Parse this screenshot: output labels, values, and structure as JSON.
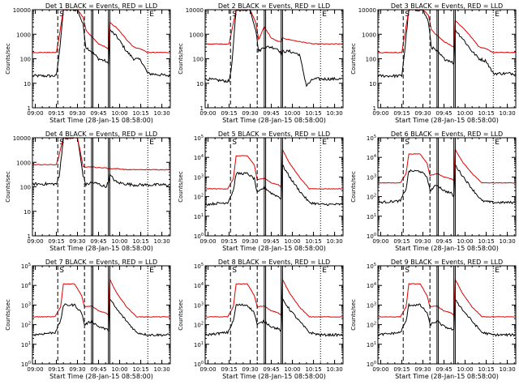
{
  "figure": {
    "xaxis_title": "Start Time (28-Jan-15 08:58:00)",
    "ylabel": "Counts/sec",
    "x_ticks": [
      "09:00",
      "09:15",
      "09:30",
      "09:45",
      "10:00",
      "10:15",
      "10:30"
    ],
    "colors": {
      "events": "#000000",
      "lld": "#dd0000"
    },
    "markers": {
      "dashed_times": [
        "09:16",
        "09:35"
      ],
      "solid_times": [
        "09:40",
        "09:41",
        "09:52",
        "09:53"
      ],
      "dotted_times": [
        "10:20"
      ],
      "letters": [
        "S",
        "E"
      ]
    }
  },
  "chart_data": [
    {
      "title": "Det 1 BLACK = Events, RED = LLD",
      "type": "line",
      "yscale": "log",
      "y_ticks": [
        "1",
        "10",
        "100",
        "1000",
        "10000"
      ],
      "ylim": [
        1,
        10000
      ],
      "x": [
        "08:58",
        "09:15",
        "09:17",
        "09:20",
        "09:30",
        "09:34",
        "09:36",
        "09:40",
        "09:45",
        "09:50",
        "09:52",
        "09:53",
        "09:58",
        "10:05",
        "10:10",
        "10:15",
        "10:20",
        "10:36"
      ],
      "series": [
        {
          "name": "Events",
          "values": [
            20,
            20,
            150,
            10000,
            10000,
            2500,
            300,
            200,
            100,
            80,
            60,
            1500,
            800,
            200,
            100,
            90,
            25,
            20
          ]
        },
        {
          "name": "LLD",
          "values": [
            180,
            180,
            800,
            10000,
            10000,
            5000,
            1500,
            800,
            400,
            300,
            250,
            3000,
            1800,
            600,
            300,
            250,
            180,
            180
          ]
        }
      ]
    },
    {
      "title": "Det 2 BLACK = Events, RED = LLD",
      "type": "line",
      "yscale": "log",
      "y_ticks": [
        "1",
        "10",
        "100",
        "1000",
        "10000"
      ],
      "ylim": [
        1,
        10000
      ],
      "x": [
        "08:58",
        "09:15",
        "09:17",
        "09:20",
        "09:30",
        "09:34",
        "09:36",
        "09:40",
        "09:45",
        "09:50",
        "09:52",
        "09:53",
        "09:58",
        "10:05",
        "10:10",
        "10:15",
        "10:20",
        "10:36"
      ],
      "series": [
        {
          "name": "Events",
          "values": [
            15,
            12,
            60,
            10000,
            10000,
            1500,
            200,
            300,
            300,
            250,
            150,
            200,
            200,
            150,
            8,
            15,
            15,
            15
          ]
        },
        {
          "name": "LLD",
          "values": [
            400,
            400,
            1500,
            10000,
            10000,
            3000,
            600,
            2000,
            700,
            500,
            500,
            700,
            600,
            500,
            450,
            400,
            400,
            400
          ]
        }
      ]
    },
    {
      "title": "Det 3 BLACK = Events, RED = LLD",
      "type": "line",
      "yscale": "log",
      "y_ticks": [
        "1",
        "10",
        "100",
        "1000",
        "10000"
      ],
      "ylim": [
        1,
        10000
      ],
      "x": [
        "08:58",
        "09:15",
        "09:17",
        "09:20",
        "09:30",
        "09:34",
        "09:36",
        "09:40",
        "09:45",
        "09:50",
        "09:52",
        "09:53",
        "09:58",
        "10:05",
        "10:10",
        "10:15",
        "10:20",
        "10:36"
      ],
      "series": [
        {
          "name": "Events",
          "values": [
            20,
            20,
            200,
            10000,
            10000,
            3000,
            300,
            200,
            100,
            80,
            60,
            1500,
            700,
            200,
            100,
            80,
            25,
            25
          ]
        },
        {
          "name": "LLD",
          "values": [
            180,
            180,
            900,
            10000,
            10000,
            6000,
            1500,
            900,
            500,
            350,
            300,
            3500,
            2000,
            700,
            300,
            250,
            180,
            180
          ]
        }
      ]
    },
    {
      "title": "Det 4 BLACK = Events, RED = LLD",
      "type": "line",
      "yscale": "log",
      "y_ticks": [
        "1",
        "10",
        "100",
        "1000",
        "10000"
      ],
      "ylim": [
        1,
        10000
      ],
      "x": [
        "08:58",
        "09:15",
        "09:17",
        "09:20",
        "09:30",
        "09:34",
        "09:36",
        "09:40",
        "09:45",
        "09:50",
        "09:52",
        "09:53",
        "09:58",
        "10:05",
        "10:10",
        "10:15",
        "10:20",
        "10:36"
      ],
      "series": [
        {
          "name": "Events",
          "values": [
            130,
            130,
            250,
            10000,
            10000,
            300,
            120,
            150,
            130,
            100,
            150,
            300,
            150,
            130,
            120,
            120,
            120,
            120
          ]
        },
        {
          "name": "LLD",
          "values": [
            800,
            800,
            2000,
            10000,
            10000,
            700,
            650,
            650,
            600,
            600,
            550,
            550,
            550,
            500,
            500,
            500,
            500,
            500
          ]
        }
      ]
    },
    {
      "title": "Det 5 BLACK = Events, RED = LLD",
      "type": "line",
      "yscale": "log",
      "y_ticks": [
        "10^0",
        "10^1",
        "10^2",
        "10^3",
        "10^4",
        "10^5"
      ],
      "ylim": [
        1,
        100000
      ],
      "x": [
        "08:58",
        "09:14",
        "09:18",
        "09:20",
        "09:28",
        "09:33",
        "09:35",
        "09:40",
        "09:45",
        "09:50",
        "09:52",
        "09:53",
        "09:58",
        "10:05",
        "10:12",
        "10:20",
        "10:36"
      ],
      "series": [
        {
          "name": "Events",
          "values": [
            40,
            50,
            200,
            1500,
            1500,
            800,
            150,
            300,
            150,
            100,
            80,
            4000,
            1000,
            200,
            50,
            40,
            40
          ]
        },
        {
          "name": "LLD",
          "values": [
            250,
            250,
            800,
            12000,
            12000,
            4000,
            700,
            900,
            500,
            400,
            300,
            25000,
            5000,
            1000,
            250,
            250,
            250
          ]
        }
      ]
    },
    {
      "title": "Det 6 BLACK = Events, RED = LLD",
      "type": "line",
      "yscale": "log",
      "y_ticks": [
        "10^0",
        "10^1",
        "10^2",
        "10^3",
        "10^4",
        "10^5"
      ],
      "ylim": [
        1,
        100000
      ],
      "x": [
        "08:58",
        "09:14",
        "09:18",
        "09:20",
        "09:28",
        "09:33",
        "09:35",
        "09:40",
        "09:45",
        "09:50",
        "09:52",
        "09:53",
        "09:58",
        "10:05",
        "10:12",
        "10:20",
        "10:36"
      ],
      "series": [
        {
          "name": "Events",
          "values": [
            50,
            60,
            250,
            2000,
            2000,
            1000,
            200,
            400,
            200,
            150,
            100,
            4000,
            1200,
            250,
            60,
            50,
            50
          ]
        },
        {
          "name": "LLD",
          "values": [
            500,
            500,
            1500,
            15000,
            15000,
            5000,
            1200,
            1500,
            1000,
            800,
            700,
            25000,
            6000,
            1500,
            500,
            500,
            500
          ]
        }
      ]
    },
    {
      "title": "Det 7 BLACK = Events, RED = LLD",
      "type": "line",
      "yscale": "log",
      "y_ticks": [
        "10^0",
        "10^1",
        "10^2",
        "10^3",
        "10^4",
        "10^5"
      ],
      "ylim": [
        1,
        100000
      ],
      "x": [
        "08:58",
        "09:14",
        "09:18",
        "09:20",
        "09:28",
        "09:33",
        "09:35",
        "09:40",
        "09:45",
        "09:50",
        "09:52",
        "09:53",
        "09:58",
        "10:05",
        "10:12",
        "10:20",
        "10:36"
      ],
      "series": [
        {
          "name": "Events",
          "values": [
            30,
            40,
            150,
            1000,
            1000,
            400,
            100,
            150,
            80,
            60,
            50,
            2000,
            600,
            150,
            40,
            30,
            30
          ]
        },
        {
          "name": "LLD",
          "values": [
            250,
            250,
            800,
            12000,
            12000,
            3000,
            800,
            900,
            500,
            400,
            300,
            20000,
            4000,
            800,
            250,
            250,
            250
          ]
        }
      ]
    },
    {
      "title": "Det 8 BLACK = Events, RED = LLD",
      "type": "line",
      "yscale": "log",
      "y_ticks": [
        "10^0",
        "10^1",
        "10^2",
        "10^3",
        "10^4",
        "10^5"
      ],
      "ylim": [
        1,
        100000
      ],
      "x": [
        "08:58",
        "09:14",
        "09:18",
        "09:20",
        "09:28",
        "09:33",
        "09:35",
        "09:40",
        "09:45",
        "09:50",
        "09:52",
        "09:53",
        "09:58",
        "10:05",
        "10:12",
        "10:20",
        "10:36"
      ],
      "series": [
        {
          "name": "Events",
          "values": [
            30,
            40,
            150,
            1000,
            1000,
            400,
            100,
            150,
            80,
            60,
            50,
            2000,
            600,
            150,
            40,
            30,
            30
          ]
        },
        {
          "name": "LLD",
          "values": [
            250,
            250,
            800,
            12000,
            12000,
            3000,
            800,
            900,
            500,
            400,
            300,
            20000,
            4000,
            800,
            250,
            250,
            250
          ]
        }
      ]
    },
    {
      "title": "Det 9 BLACK = Events, RED = LLD",
      "type": "line",
      "yscale": "log",
      "y_ticks": [
        "10^0",
        "10^1",
        "10^2",
        "10^3",
        "10^4",
        "10^5"
      ],
      "ylim": [
        1,
        100000
      ],
      "x": [
        "08:58",
        "09:14",
        "09:18",
        "09:20",
        "09:28",
        "09:33",
        "09:35",
        "09:40",
        "09:45",
        "09:50",
        "09:52",
        "09:53",
        "09:58",
        "10:05",
        "10:12",
        "10:20",
        "10:36"
      ],
      "series": [
        {
          "name": "Events",
          "values": [
            30,
            40,
            150,
            1000,
            1000,
            400,
            100,
            150,
            80,
            60,
            50,
            2000,
            600,
            150,
            40,
            30,
            30
          ]
        },
        {
          "name": "LLD",
          "values": [
            250,
            250,
            800,
            12000,
            12000,
            3000,
            800,
            900,
            500,
            400,
            300,
            20000,
            4000,
            800,
            250,
            250,
            250
          ]
        }
      ]
    }
  ]
}
